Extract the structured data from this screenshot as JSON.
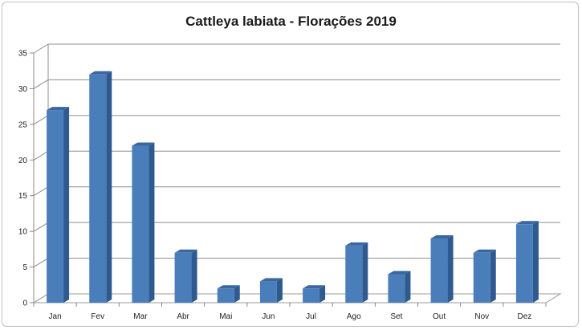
{
  "chart_data": {
    "type": "bar",
    "title": "Cattleya labiata - Florações 2019",
    "categories": [
      "Jan",
      "Fev",
      "Mar",
      "Abr",
      "Mai",
      "Jun",
      "Jul",
      "Ago",
      "Set",
      "Out",
      "Nov",
      "Dez"
    ],
    "values": [
      27,
      32,
      22,
      7,
      2,
      3,
      2,
      8,
      4,
      9,
      7,
      11
    ],
    "xlabel": "",
    "ylabel": "",
    "ylim": [
      0,
      35
    ],
    "yticks": [
      "0",
      "5",
      "10",
      "15",
      "20",
      "25",
      "30",
      "35"
    ],
    "grid": true,
    "legend": "none",
    "colors": {
      "bar_front": "#4a7ebb",
      "bar_side": "#2f5a8f",
      "bar_top": "#3a679f",
      "grid": "#8c8c8c"
    }
  }
}
